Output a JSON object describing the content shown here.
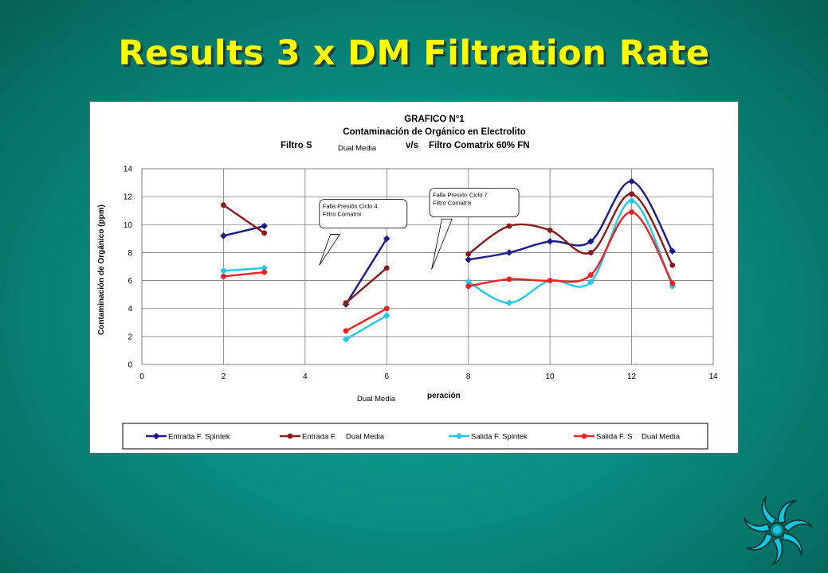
{
  "slide": {
    "title": "Results 3 x DM Filtration Rate",
    "logo_icon": "swirl-logo-icon",
    "colors": {
      "background": "#0a8e82",
      "title": "#ffff00",
      "logo": "#12c6e6"
    }
  },
  "chart_data": {
    "type": "line",
    "title_lines": [
      "GRAFICO N°1",
      "Contaminación de Orgánico en Electrolito"
    ],
    "title_line3_left": "Filtro S",
    "title_line3_mid": "v/s",
    "title_line3_right": "Filtro Comatrix 60% FN",
    "title_overlay": "Dual Media",
    "ylabel": "Contaminación de Orgánico (ppm)",
    "xlabel_partial": "peración",
    "xlabel_overlay": "Dual Media",
    "xlim": [
      0,
      14
    ],
    "ylim": [
      0,
      14
    ],
    "xticks": [
      0,
      2,
      4,
      6,
      8,
      10,
      12,
      14
    ],
    "yticks": [
      0,
      2,
      4,
      6,
      8,
      10,
      12,
      14
    ],
    "grid": true,
    "legend_position": "bottom",
    "series": [
      {
        "name": "Entrada F. Spintek",
        "color": "#1a1a8c",
        "segments": [
          [
            [
              2,
              9.2
            ],
            [
              3,
              9.9
            ]
          ],
          [
            [
              5,
              4.3
            ],
            [
              6,
              9.0
            ]
          ],
          [
            [
              8,
              7.5
            ],
            [
              9,
              8.0
            ],
            [
              10,
              8.8
            ],
            [
              11,
              8.8
            ],
            [
              12,
              13.1
            ],
            [
              13,
              8.1
            ]
          ]
        ]
      },
      {
        "name": "Entrada F.",
        "name_overlay": "Dual Media",
        "color": "#8b1a1a",
        "segments": [
          [
            [
              2,
              11.4
            ],
            [
              3,
              9.4
            ]
          ],
          [
            [
              5,
              4.4
            ],
            [
              6,
              6.9
            ]
          ],
          [
            [
              8,
              7.9
            ],
            [
              9,
              9.9
            ],
            [
              10,
              9.6
            ],
            [
              11,
              8.0
            ],
            [
              12,
              12.2
            ],
            [
              13,
              7.1
            ]
          ]
        ]
      },
      {
        "name": "Salida F. Spintek",
        "color": "#1ec8f0",
        "segments": [
          [
            [
              2,
              6.7
            ],
            [
              3,
              6.9
            ]
          ],
          [
            [
              5,
              1.8
            ],
            [
              6,
              3.5
            ]
          ],
          [
            [
              8,
              5.9
            ],
            [
              9,
              4.4
            ],
            [
              10,
              6.0
            ],
            [
              11,
              5.9
            ],
            [
              12,
              11.7
            ],
            [
              13,
              5.6
            ]
          ]
        ]
      },
      {
        "name": "Salida F. S",
        "name_overlay": "Dual Media",
        "color": "#ee2020",
        "segments": [
          [
            [
              2,
              6.3
            ],
            [
              3,
              6.6
            ]
          ],
          [
            [
              5,
              2.4
            ],
            [
              6,
              4.0
            ]
          ],
          [
            [
              8,
              5.6
            ],
            [
              9,
              6.1
            ],
            [
              10,
              6.0
            ],
            [
              11,
              6.4
            ],
            [
              12,
              10.9
            ],
            [
              13,
              5.8
            ]
          ]
        ]
      }
    ],
    "annotations": [
      {
        "lines": [
          "Falla Presión Ciclo 4",
          "Filtro Comatrix"
        ]
      },
      {
        "lines": [
          "Falla Presión Ciclo 7",
          "Filtro Comatrix"
        ]
      }
    ]
  }
}
